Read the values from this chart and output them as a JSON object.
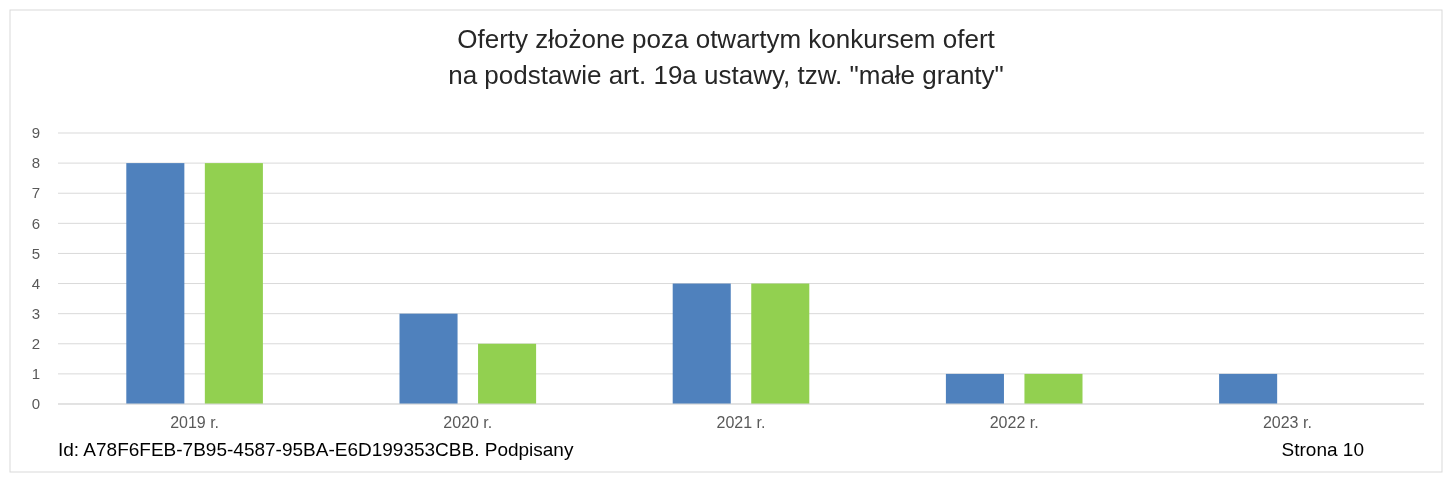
{
  "chart_data": {
    "type": "bar",
    "title": "Oferty złożone poza otwartym konkursem ofert\nna podstawie art. 19a ustawy, tzw. \"małe granty\"",
    "categories": [
      "2019 r.",
      "2020 r.",
      "2021 r.",
      "2022 r.",
      "2023 r."
    ],
    "series": [
      {
        "color": "#4f81bd",
        "values": [
          8,
          3,
          4,
          1,
          1
        ]
      },
      {
        "color": "#92d050",
        "values": [
          8,
          2,
          4,
          1,
          0
        ]
      }
    ],
    "ylim": [
      0,
      9
    ],
    "yticks": [
      0,
      1,
      2,
      3,
      4,
      5,
      6,
      7,
      8,
      9
    ],
    "grid": "y",
    "annotations": [
      "Id: A78F6FEB-7B95-4587-95BA-E6D199353CBB. Podpisany",
      "Strona 10"
    ]
  }
}
